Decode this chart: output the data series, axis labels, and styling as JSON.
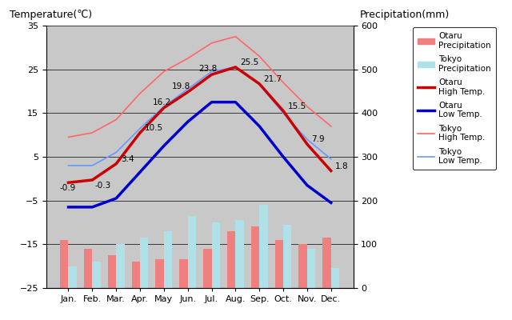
{
  "months": [
    "Jan.",
    "Feb.",
    "Mar.",
    "Apr.",
    "May",
    "Jun.",
    "Jul.",
    "Aug.",
    "Sep.",
    "Oct.",
    "Nov.",
    "Dec."
  ],
  "otaru_high": [
    -0.9,
    -0.3,
    3.4,
    10.5,
    16.2,
    19.8,
    23.8,
    25.5,
    21.7,
    15.5,
    7.9,
    1.8
  ],
  "otaru_low": [
    -6.5,
    -6.5,
    -4.5,
    1.5,
    7.5,
    13.0,
    17.5,
    17.5,
    12.0,
    5.0,
    -1.5,
    -5.5
  ],
  "tokyo_high": [
    9.5,
    10.5,
    13.5,
    19.5,
    24.5,
    27.5,
    31.0,
    32.5,
    28.0,
    22.0,
    16.5,
    12.0
  ],
  "tokyo_low": [
    3.0,
    3.0,
    6.0,
    11.5,
    16.5,
    20.5,
    24.5,
    25.5,
    21.5,
    15.0,
    9.0,
    4.5
  ],
  "otaru_precip": [
    110,
    90,
    75,
    60,
    65,
    65,
    90,
    130,
    140,
    110,
    100,
    115
  ],
  "tokyo_precip": [
    50,
    60,
    100,
    115,
    130,
    165,
    150,
    155,
    190,
    145,
    90,
    45
  ],
  "temp_ylim": [
    -25,
    35
  ],
  "precip_ylim": [
    0,
    600
  ],
  "temp_yticks": [
    -25,
    -15,
    -5,
    5,
    15,
    25,
    35
  ],
  "precip_yticks": [
    0,
    100,
    200,
    300,
    400,
    500,
    600
  ],
  "background_color": "#c8c8c8",
  "otaru_high_color": "#cc0000",
  "otaru_low_color": "#0000cc",
  "tokyo_high_color": "#ff6666",
  "tokyo_low_color": "#6699ff",
  "otaru_precip_color": "#f08080",
  "tokyo_precip_color": "#b0e0e8",
  "title_left": "Temperature(℃)",
  "title_right": "Precipitation(mm)",
  "legend_labels": [
    "Otaru\nPrecipitation",
    "Tokyo\nPrecipitation",
    "Otaru\nHigh Temp.",
    "Otaru\nLow Temp.",
    "Tokyo\nHigh Temp.",
    "Tokyo\nLow Temp."
  ]
}
